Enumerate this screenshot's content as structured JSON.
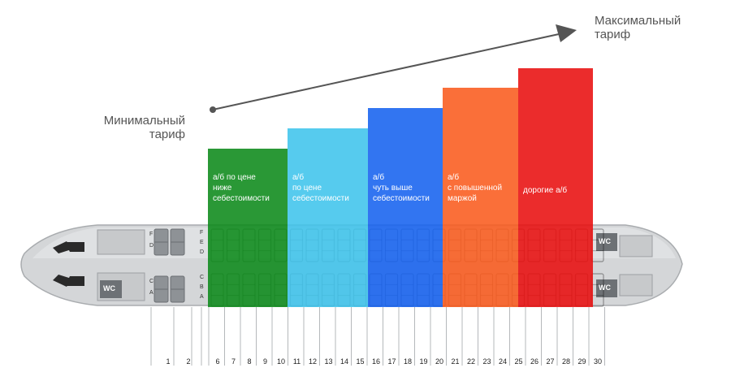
{
  "tariffs": {
    "min_label": "Минимальный\nтариф",
    "max_label": "Максимальный\nтариф"
  },
  "tiers": [
    {
      "label": "а/б по цене\nниже\nсебестоимости",
      "rows": "6–10",
      "color": "#0c8a1a",
      "level": 1
    },
    {
      "label": "а/б\nпо цене\nсебестоимости",
      "rows": "11–15",
      "color": "#3fc4ec",
      "level": 2
    },
    {
      "label": "а/б\nчуть выше\nсебестоимости",
      "rows": "16–20",
      "color": "#1662ef",
      "level": 3
    },
    {
      "label": "а/б\nс повышенной\nмаржой",
      "rows": "21–25",
      "color": "#f95b1e",
      "level": 4
    },
    {
      "label": "дорогие а/б",
      "rows": "26–30",
      "color": "#e80f0f",
      "level": 5
    }
  ],
  "seat_letters": {
    "front_top": [
      "F",
      "D"
    ],
    "front_bottom": [
      "C",
      "A"
    ],
    "cabin_top": [
      "F",
      "E",
      "D"
    ],
    "cabin_bottom": [
      "C",
      "B",
      "A"
    ]
  },
  "wc_label": "WC",
  "row_numbers": [
    "1",
    "2",
    "6",
    "7",
    "8",
    "9",
    "10",
    "11",
    "12",
    "13",
    "14",
    "15",
    "16",
    "17",
    "18",
    "19",
    "20",
    "21",
    "22",
    "23",
    "24",
    "25",
    "26",
    "27",
    "28",
    "29",
    "30"
  ]
}
